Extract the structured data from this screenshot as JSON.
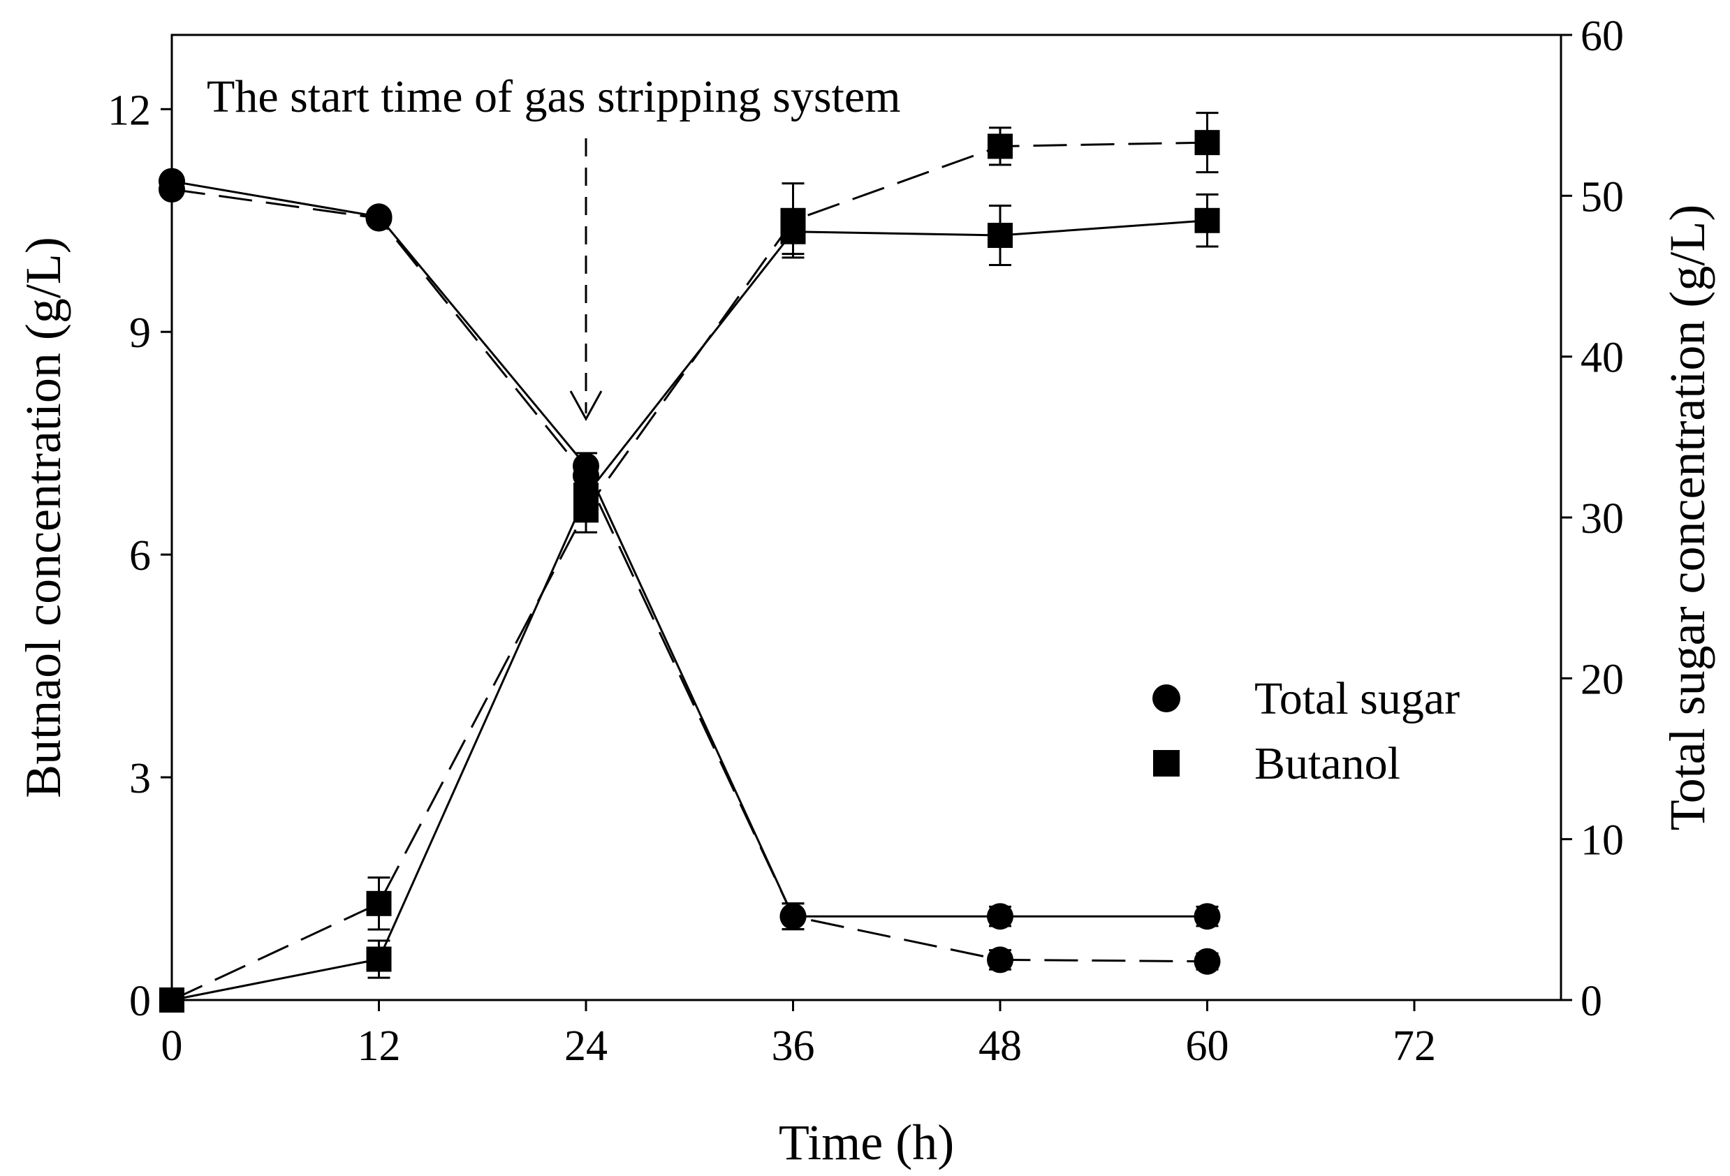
{
  "chart_data": {
    "type": "line",
    "title": "",
    "annotation": "The start time of gas stripping system",
    "annotation_x": 24,
    "xlabel": "Time (h)",
    "ylabel_left": "Butnaol concentration (g/L)",
    "ylabel_right": "Total sugar concentration (g/L)",
    "xlim": [
      0,
      80.5
    ],
    "ylim_left": [
      0,
      13
    ],
    "ylim_right": [
      0,
      60
    ],
    "x_ticks": [
      0,
      12,
      24,
      36,
      48,
      60,
      72
    ],
    "y_ticks_left": [
      0,
      3,
      6,
      9,
      12
    ],
    "y_ticks_right": [
      0,
      10,
      20,
      30,
      40,
      50,
      60
    ],
    "legend": [
      {
        "label": "Total sugar",
        "marker": "circle"
      },
      {
        "label": "Butanol",
        "marker": "square"
      }
    ],
    "legend_position": "center-right",
    "series": [
      {
        "name": "Total sugar (solid)",
        "marker": "circle",
        "line": "solid",
        "axis": "right",
        "x": [
          0,
          12,
          24,
          36,
          48,
          60
        ],
        "values": [
          50.9,
          48.7,
          33.2,
          5.2,
          5.2,
          5.2
        ],
        "errors": [
          0.3,
          0.4,
          0.8,
          0.8,
          0.6,
          0.6
        ]
      },
      {
        "name": "Total sugar (dashed)",
        "marker": "circle",
        "line": "dashed",
        "axis": "right",
        "x": [
          0,
          12,
          24,
          36,
          48,
          60
        ],
        "values": [
          50.4,
          48.6,
          32.6,
          5.2,
          2.5,
          2.4
        ],
        "errors": [
          0.3,
          0.4,
          0.8,
          0.8,
          0.6,
          0.5
        ]
      },
      {
        "name": "Butanol (solid)",
        "marker": "square",
        "line": "solid",
        "axis": "left",
        "x": [
          0,
          12,
          24,
          36,
          48,
          60
        ],
        "values": [
          0,
          0.55,
          6.8,
          10.35,
          10.3,
          10.5
        ],
        "errors": [
          0,
          0.25,
          0.3,
          0.3,
          0.4,
          0.35
        ]
      },
      {
        "name": "Butanol (dashed)",
        "marker": "square",
        "line": "dashed",
        "axis": "left",
        "x": [
          0,
          12,
          24,
          36,
          48,
          60
        ],
        "values": [
          0,
          1.3,
          6.6,
          10.5,
          11.5,
          11.55
        ],
        "errors": [
          0,
          0.35,
          0.3,
          0.5,
          0.25,
          0.4
        ]
      }
    ]
  }
}
